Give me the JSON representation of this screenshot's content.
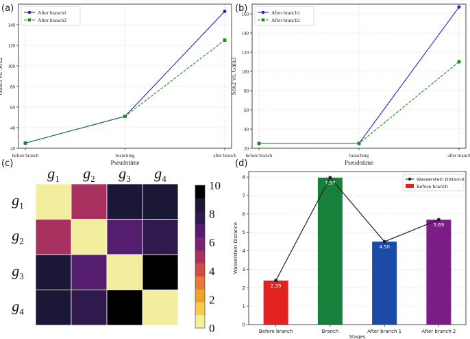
{
  "chart_data": [
    {
      "panel": "(a)",
      "type": "line",
      "categories": [
        "before branch",
        "branching",
        "after branch"
      ],
      "xlabel": "Pseudotime",
      "ylabel": "Gata3 vs. Sox2",
      "ylim": [
        20,
        160
      ],
      "yticks": [
        20,
        40,
        60,
        80,
        100,
        120,
        140
      ],
      "grid": true,
      "legend_position": "top-left",
      "series": [
        {
          "name": "After branch1",
          "color": "#2222cc",
          "style": "solid",
          "marker": "circle",
          "values": [
            25,
            51,
            153
          ]
        },
        {
          "name": "After branch2",
          "color": "#1a8a1a",
          "style": "dashed",
          "marker": "square",
          "values": [
            25,
            51,
            125
          ]
        }
      ]
    },
    {
      "panel": "(b)",
      "type": "line",
      "categories": [
        "before branch",
        "branching",
        "after branch"
      ],
      "xlabel": "Pseudotime",
      "ylabel": "Sox2 vs. Gata3",
      "ylim": [
        20,
        170
      ],
      "yticks": [
        20,
        40,
        60,
        80,
        100,
        120,
        140,
        160
      ],
      "grid": true,
      "legend_position": "top-left",
      "series": [
        {
          "name": "After branch1",
          "color": "#2222cc",
          "style": "solid",
          "marker": "circle",
          "values": [
            25,
            25,
            167
          ]
        },
        {
          "name": "After branch2",
          "color": "#1a8a1a",
          "style": "dashed",
          "marker": "square",
          "values": [
            25,
            25,
            110
          ]
        }
      ]
    },
    {
      "panel": "(c)",
      "type": "heatmap",
      "row_labels": [
        "g",
        "g",
        "g",
        "g"
      ],
      "row_subscripts": [
        "1",
        "2",
        "3",
        "4"
      ],
      "col_labels": [
        "g",
        "g",
        "g",
        "g"
      ],
      "col_subscripts": [
        "1",
        "2",
        "3",
        "4"
      ],
      "values": [
        [
          0,
          5,
          9,
          9
        ],
        [
          5,
          0,
          6.5,
          7.5
        ],
        [
          9,
          6.5,
          0,
          10
        ],
        [
          9,
          7.5,
          10,
          0
        ]
      ],
      "colorbar_range": [
        0,
        10
      ],
      "colorbar_ticks": [
        "10",
        "8",
        "6",
        "4",
        "2",
        "0"
      ],
      "colorbar_palette": [
        "#f3ee9e",
        "#f2cc4a",
        "#eca32a",
        "#e37a36",
        "#cf4e45",
        "#a83160",
        "#7c2272",
        "#541d6e",
        "#301a4d",
        "#1a1836",
        "#000000"
      ]
    },
    {
      "panel": "(d)",
      "type": "bar",
      "categories": [
        "Before branch",
        "Branch",
        "After branch 1",
        "After branch 2"
      ],
      "values": [
        2.39,
        7.97,
        4.5,
        5.69
      ],
      "value_labels": [
        "2.39",
        "7.97",
        "4.50",
        "5.69"
      ],
      "bar_colors": [
        "#e3231f",
        "#17803a",
        "#1b4aa8",
        "#7b1d84"
      ],
      "line_series": {
        "name": "Wasserstein Distance",
        "values": [
          2.39,
          7.97,
          4.5,
          5.69
        ],
        "color": "#222222"
      },
      "legend_entries": [
        "Wasserstein Distance",
        "Before branch"
      ],
      "xlabel": "Stages",
      "ylabel": "Wasserstein Distance",
      "ylim": [
        0,
        8.3
      ],
      "yticks": [
        0,
        1,
        2,
        3,
        4,
        5,
        6,
        7,
        8
      ],
      "grid": true,
      "legend_position": "top-right"
    }
  ]
}
